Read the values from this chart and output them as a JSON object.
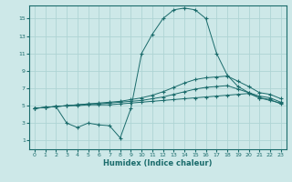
{
  "xlabel": "Humidex (Indice chaleur)",
  "bg_color": "#cde8e8",
  "line_color": "#1a6b6b",
  "grid_color": "#aed4d4",
  "xlim": [
    -0.5,
    23.5
  ],
  "ylim": [
    0,
    16.5
  ],
  "xticks": [
    0,
    1,
    2,
    3,
    4,
    5,
    6,
    7,
    8,
    9,
    10,
    11,
    12,
    13,
    14,
    15,
    16,
    17,
    18,
    19,
    20,
    21,
    22,
    23
  ],
  "yticks": [
    1,
    3,
    5,
    7,
    9,
    11,
    13,
    15
  ],
  "series": [
    {
      "x": [
        0,
        1,
        2,
        3,
        4,
        5,
        6,
        7,
        8,
        9,
        10,
        11,
        12,
        13,
        14,
        15,
        16,
        17,
        18,
        19,
        20,
        21,
        22,
        23
      ],
      "y": [
        4.7,
        4.8,
        4.9,
        5.0,
        5.1,
        5.2,
        5.3,
        5.4,
        5.5,
        5.7,
        5.9,
        6.2,
        6.6,
        7.1,
        7.6,
        8.0,
        8.2,
        8.3,
        8.4,
        7.8,
        7.2,
        6.5,
        6.3,
        5.8
      ]
    },
    {
      "x": [
        0,
        1,
        2,
        3,
        4,
        5,
        6,
        7,
        8,
        9,
        10,
        11,
        12,
        13,
        14,
        15,
        16,
        17,
        18,
        19,
        20,
        21,
        22,
        23
      ],
      "y": [
        4.7,
        4.8,
        4.9,
        5.0,
        5.1,
        5.2,
        5.2,
        5.3,
        5.4,
        5.5,
        5.6,
        5.8,
        6.0,
        6.3,
        6.6,
        6.9,
        7.1,
        7.2,
        7.3,
        6.9,
        6.5,
        6.1,
        5.9,
        5.4
      ]
    },
    {
      "x": [
        0,
        1,
        2,
        3,
        4,
        5,
        6,
        7,
        8,
        9,
        10,
        11,
        12,
        13,
        14,
        15,
        16,
        17,
        18,
        19,
        20,
        21,
        22,
        23
      ],
      "y": [
        4.7,
        4.8,
        4.9,
        3.0,
        2.5,
        3.0,
        2.8,
        2.7,
        1.3,
        4.7,
        11.0,
        13.2,
        15.0,
        16.0,
        16.2,
        16.0,
        15.0,
        11.0,
        8.5,
        7.2,
        6.5,
        5.9,
        5.6,
        5.3
      ]
    },
    {
      "x": [
        0,
        1,
        2,
        3,
        4,
        5,
        6,
        7,
        8,
        9,
        10,
        11,
        12,
        13,
        14,
        15,
        16,
        17,
        18,
        19,
        20,
        21,
        22,
        23
      ],
      "y": [
        4.7,
        4.8,
        4.9,
        5.0,
        5.0,
        5.1,
        5.1,
        5.1,
        5.2,
        5.3,
        5.4,
        5.5,
        5.6,
        5.7,
        5.8,
        5.9,
        6.0,
        6.1,
        6.2,
        6.3,
        6.4,
        5.9,
        5.7,
        5.2
      ]
    }
  ]
}
